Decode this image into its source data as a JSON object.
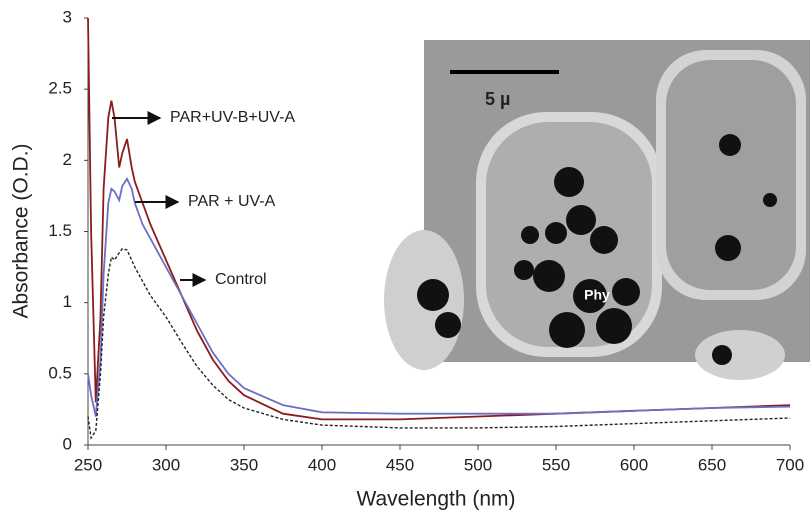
{
  "chart_data": {
    "type": "line",
    "x_label": "Wavelength (nm)",
    "y_label": "Absorbance (O.D.)",
    "x": [
      250,
      252,
      255,
      258,
      260,
      263,
      265,
      267,
      270,
      272,
      275,
      278,
      280,
      285,
      290,
      300,
      310,
      320,
      330,
      340,
      350,
      375,
      400,
      450,
      500,
      550,
      600,
      650,
      700
    ],
    "series": [
      {
        "name": "PAR+UV-B+UV-A",
        "color": "#8b1c1c",
        "dash": false,
        "values": [
          3.0,
          1.5,
          0.3,
          0.9,
          1.8,
          2.3,
          2.42,
          2.3,
          1.95,
          2.05,
          2.15,
          1.95,
          1.85,
          1.7,
          1.55,
          1.3,
          1.05,
          0.8,
          0.6,
          0.45,
          0.35,
          0.22,
          0.18,
          0.18,
          0.2,
          0.22,
          0.24,
          0.26,
          0.28
        ]
      },
      {
        "name": "PAR + UV-A",
        "color": "#6b70c4",
        "dash": false,
        "values": [
          0.5,
          0.35,
          0.2,
          0.6,
          1.2,
          1.7,
          1.8,
          1.78,
          1.72,
          1.82,
          1.87,
          1.8,
          1.7,
          1.55,
          1.45,
          1.25,
          1.05,
          0.85,
          0.65,
          0.5,
          0.4,
          0.28,
          0.23,
          0.22,
          0.22,
          0.22,
          0.24,
          0.26,
          0.27
        ]
      },
      {
        "name": "Control",
        "color": "#222222",
        "dash": true,
        "values": [
          0.2,
          0.05,
          0.1,
          0.5,
          0.9,
          1.2,
          1.32,
          1.3,
          1.35,
          1.38,
          1.37,
          1.3,
          1.25,
          1.15,
          1.05,
          0.9,
          0.72,
          0.55,
          0.42,
          0.32,
          0.26,
          0.18,
          0.14,
          0.12,
          0.12,
          0.13,
          0.15,
          0.17,
          0.19
        ]
      }
    ],
    "xlim": [
      250,
      700
    ],
    "xticks": [
      250,
      300,
      350,
      400,
      450,
      500,
      550,
      600,
      650,
      700
    ],
    "ylim": [
      0,
      3
    ],
    "yticks": [
      0,
      0.5,
      1,
      1.5,
      2,
      2.5,
      3
    ],
    "grid": false,
    "inset": {
      "scale_label": "5 µ",
      "label": "Phy"
    }
  }
}
